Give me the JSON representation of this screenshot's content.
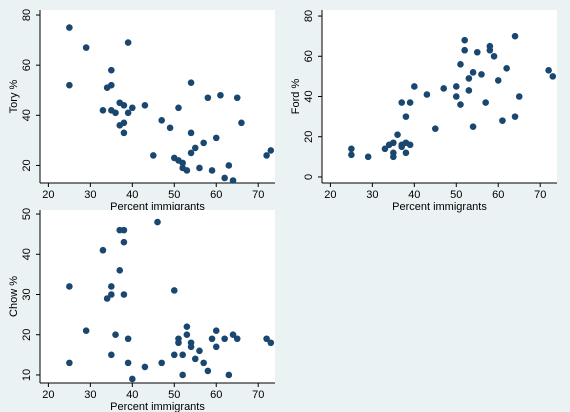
{
  "figure": {
    "background": "#EAF2F3",
    "plot_background": "#FFFFFF",
    "marker_color": "#1A476F"
  },
  "chart_data": [
    {
      "type": "scatter",
      "xlabel": "Percent immigrants",
      "ylabel": "Tory %",
      "xlim": [
        18,
        74
      ],
      "ylim": [
        13,
        82
      ],
      "xticks": [
        20,
        30,
        40,
        50,
        60,
        70
      ],
      "yticks": [
        20,
        40,
        60,
        80
      ],
      "grid": false,
      "points": [
        [
          25,
          75
        ],
        [
          25,
          52
        ],
        [
          29,
          67
        ],
        [
          33,
          42
        ],
        [
          34,
          51
        ],
        [
          35,
          52
        ],
        [
          35,
          58
        ],
        [
          35,
          42
        ],
        [
          36,
          41
        ],
        [
          37,
          36
        ],
        [
          37,
          45
        ],
        [
          38,
          33
        ],
        [
          38,
          37
        ],
        [
          38,
          44
        ],
        [
          39,
          69
        ],
        [
          39,
          41
        ],
        [
          40,
          43
        ],
        [
          43,
          44
        ],
        [
          45,
          24
        ],
        [
          47,
          38
        ],
        [
          49,
          35
        ],
        [
          50,
          23
        ],
        [
          51,
          22
        ],
        [
          51,
          43
        ],
        [
          52,
          19
        ],
        [
          52,
          21
        ],
        [
          53,
          18
        ],
        [
          54,
          53
        ],
        [
          54,
          25
        ],
        [
          54,
          33
        ],
        [
          55,
          27
        ],
        [
          56,
          19
        ],
        [
          57,
          29
        ],
        [
          58,
          47
        ],
        [
          59,
          18
        ],
        [
          60,
          31
        ],
        [
          61,
          48
        ],
        [
          62,
          15
        ],
        [
          63,
          20
        ],
        [
          64,
          14
        ],
        [
          65,
          47
        ],
        [
          66,
          37
        ],
        [
          72,
          24
        ],
        [
          73,
          26
        ]
      ]
    },
    {
      "type": "scatter",
      "xlabel": "Percent immigrants",
      "ylabel": "Ford %",
      "xlim": [
        18,
        74
      ],
      "ylim": [
        -3,
        83
      ],
      "xticks": [
        20,
        30,
        40,
        50,
        60,
        70
      ],
      "yticks": [
        0,
        20,
        40,
        60,
        80
      ],
      "grid": false,
      "points": [
        [
          25,
          14
        ],
        [
          25,
          11
        ],
        [
          29,
          10
        ],
        [
          33,
          14
        ],
        [
          34,
          16
        ],
        [
          35,
          17
        ],
        [
          35,
          12
        ],
        [
          35,
          10
        ],
        [
          36,
          21
        ],
        [
          37,
          15
        ],
        [
          37,
          37
        ],
        [
          37,
          16
        ],
        [
          38,
          12
        ],
        [
          38,
          30
        ],
        [
          38,
          17
        ],
        [
          39,
          37
        ],
        [
          39,
          16
        ],
        [
          40,
          45
        ],
        [
          43,
          41
        ],
        [
          45,
          24
        ],
        [
          47,
          44
        ],
        [
          50,
          40
        ],
        [
          50,
          45
        ],
        [
          51,
          36
        ],
        [
          51,
          56
        ],
        [
          52,
          68
        ],
        [
          52,
          63
        ],
        [
          53,
          49
        ],
        [
          53,
          43
        ],
        [
          54,
          52
        ],
        [
          54,
          25
        ],
        [
          55,
          62
        ],
        [
          56,
          51
        ],
        [
          57,
          37
        ],
        [
          58,
          63
        ],
        [
          58,
          65
        ],
        [
          59,
          60
        ],
        [
          60,
          48
        ],
        [
          61,
          28
        ],
        [
          62,
          54
        ],
        [
          64,
          70
        ],
        [
          64,
          30
        ],
        [
          65,
          40
        ],
        [
          72,
          53
        ],
        [
          73,
          50
        ]
      ]
    },
    {
      "type": "scatter",
      "xlabel": "Percent immigrants",
      "ylabel": "Chow %",
      "xlim": [
        18,
        74
      ],
      "ylim": [
        8,
        51
      ],
      "xticks": [
        20,
        30,
        40,
        50,
        60,
        70
      ],
      "yticks": [
        10,
        20,
        30,
        40,
        50
      ],
      "grid": false,
      "points": [
        [
          25,
          32
        ],
        [
          25,
          13
        ],
        [
          29,
          21
        ],
        [
          33,
          41
        ],
        [
          34,
          29
        ],
        [
          35,
          30
        ],
        [
          35,
          32
        ],
        [
          35,
          15
        ],
        [
          36,
          20
        ],
        [
          37,
          46
        ],
        [
          37,
          36
        ],
        [
          38,
          46
        ],
        [
          38,
          43
        ],
        [
          38,
          30
        ],
        [
          39,
          19
        ],
        [
          39,
          13
        ],
        [
          40,
          9
        ],
        [
          43,
          12
        ],
        [
          46,
          48
        ],
        [
          47,
          13
        ],
        [
          50,
          31
        ],
        [
          50,
          15
        ],
        [
          51,
          18
        ],
        [
          51,
          19
        ],
        [
          52,
          10
        ],
        [
          52,
          15
        ],
        [
          53,
          20
        ],
        [
          53,
          22
        ],
        [
          54,
          17
        ],
        [
          54,
          18
        ],
        [
          55,
          14
        ],
        [
          56,
          16
        ],
        [
          57,
          13
        ],
        [
          58,
          11
        ],
        [
          59,
          19
        ],
        [
          60,
          17
        ],
        [
          60,
          21
        ],
        [
          62,
          19
        ],
        [
          63,
          10
        ],
        [
          64,
          20
        ],
        [
          65,
          19
        ],
        [
          72,
          19
        ],
        [
          73,
          18
        ]
      ]
    }
  ]
}
